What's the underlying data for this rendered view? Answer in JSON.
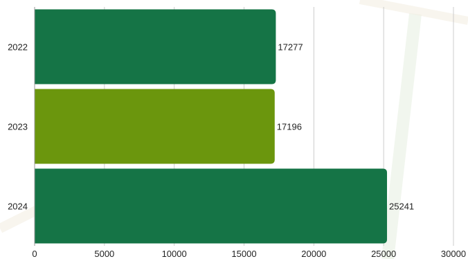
{
  "chart_data": {
    "type": "bar",
    "orientation": "horizontal",
    "title": "",
    "xlabel": "",
    "ylabel": "",
    "categories": [
      "2022",
      "2023",
      "2024"
    ],
    "values": [
      17277,
      17196,
      25241
    ],
    "bar_colors": [
      "#157446",
      "#6b960d",
      "#157446"
    ],
    "xlim": [
      0,
      30000
    ],
    "x_ticks": [
      "0",
      "5000",
      "10000",
      "15000",
      "20000",
      "25000",
      "30000"
    ],
    "data_labels": [
      "17277",
      "17196",
      "25241"
    ],
    "grid": "vertical",
    "legend": "none"
  },
  "colors": {
    "grid": "#cccccc",
    "axis": "#999999",
    "text": "#222222",
    "background_decor": "#f3efe2"
  }
}
